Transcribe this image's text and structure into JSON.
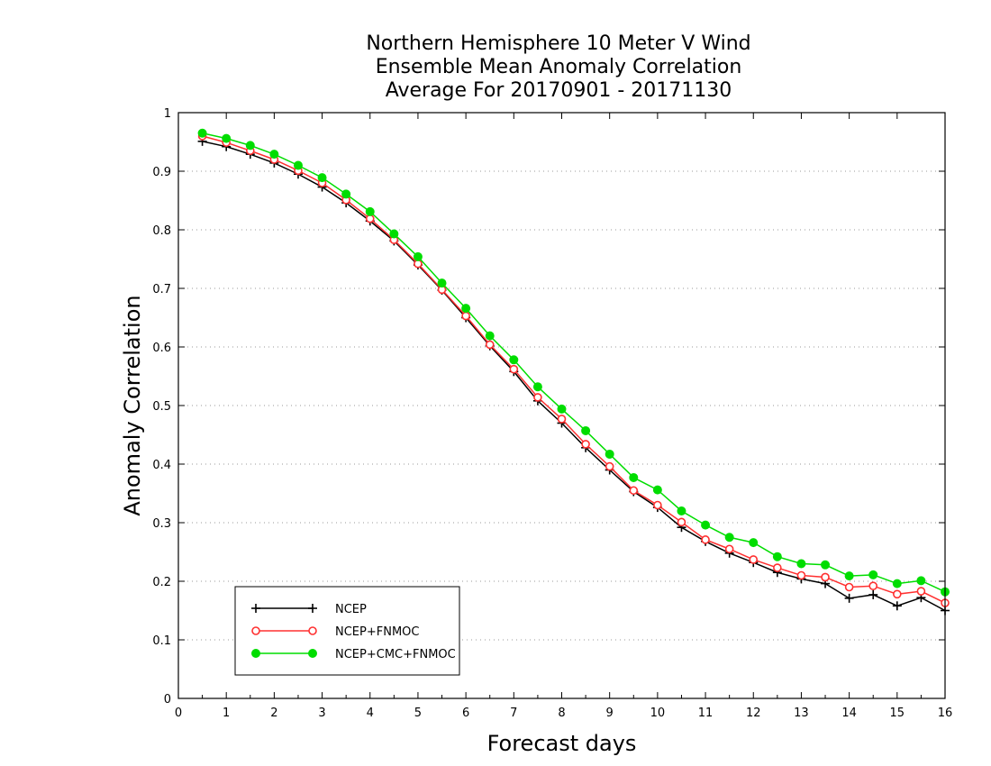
{
  "chart_data": {
    "type": "line",
    "title_lines": [
      "Northern Hemisphere 10 Meter V Wind",
      "Ensemble Mean Anomaly Correlation",
      "Average For 20170901 - 20171130"
    ],
    "xlabel": "Forecast days",
    "ylabel": "Anomaly Correlation",
    "xlim": [
      0,
      16
    ],
    "ylim": [
      0,
      1
    ],
    "xticks": [
      0,
      1,
      2,
      3,
      4,
      5,
      6,
      7,
      8,
      9,
      10,
      11,
      12,
      13,
      14,
      15,
      16
    ],
    "yticks": [
      0,
      0.1,
      0.2,
      0.3,
      0.4,
      0.5,
      0.6,
      0.7,
      0.8,
      0.9,
      1
    ],
    "grid": "horizontal dotted",
    "legend_position": "bottom-left",
    "x": [
      0.5,
      1,
      1.5,
      2,
      2.5,
      3,
      3.5,
      4,
      4.5,
      5,
      5.5,
      6,
      6.5,
      7,
      7.5,
      8,
      8.5,
      9,
      9.5,
      10,
      10.5,
      11,
      11.5,
      12,
      12.5,
      13,
      13.5,
      14,
      14.5,
      15,
      15.5,
      16
    ],
    "series": [
      {
        "name": "NCEP",
        "color": "#000000",
        "marker": "plus",
        "values": [
          0.951,
          0.942,
          0.929,
          0.914,
          0.895,
          0.873,
          0.846,
          0.815,
          0.781,
          0.74,
          0.697,
          0.65,
          0.602,
          0.558,
          0.508,
          0.47,
          0.428,
          0.39,
          0.353,
          0.326,
          0.292,
          0.268,
          0.248,
          0.232,
          0.215,
          0.204,
          0.196,
          0.171,
          0.177,
          0.158,
          0.172,
          0.15
        ]
      },
      {
        "name": "NCEP+FNMOC",
        "color": "#ff3030",
        "marker": "open-circle",
        "values": [
          0.96,
          0.949,
          0.935,
          0.92,
          0.901,
          0.88,
          0.851,
          0.819,
          0.783,
          0.742,
          0.698,
          0.653,
          0.604,
          0.562,
          0.514,
          0.477,
          0.434,
          0.396,
          0.355,
          0.33,
          0.301,
          0.271,
          0.255,
          0.237,
          0.223,
          0.21,
          0.207,
          0.19,
          0.192,
          0.178,
          0.183,
          0.163
        ]
      },
      {
        "name": "NCEP+CMC+FNMOC",
        "color": "#00dd00",
        "marker": "filled-circle",
        "values": [
          0.965,
          0.956,
          0.944,
          0.929,
          0.91,
          0.889,
          0.861,
          0.831,
          0.793,
          0.754,
          0.709,
          0.666,
          0.619,
          0.578,
          0.532,
          0.494,
          0.457,
          0.417,
          0.377,
          0.356,
          0.32,
          0.296,
          0.275,
          0.266,
          0.242,
          0.23,
          0.228,
          0.209,
          0.211,
          0.196,
          0.201,
          0.182
        ]
      }
    ]
  }
}
